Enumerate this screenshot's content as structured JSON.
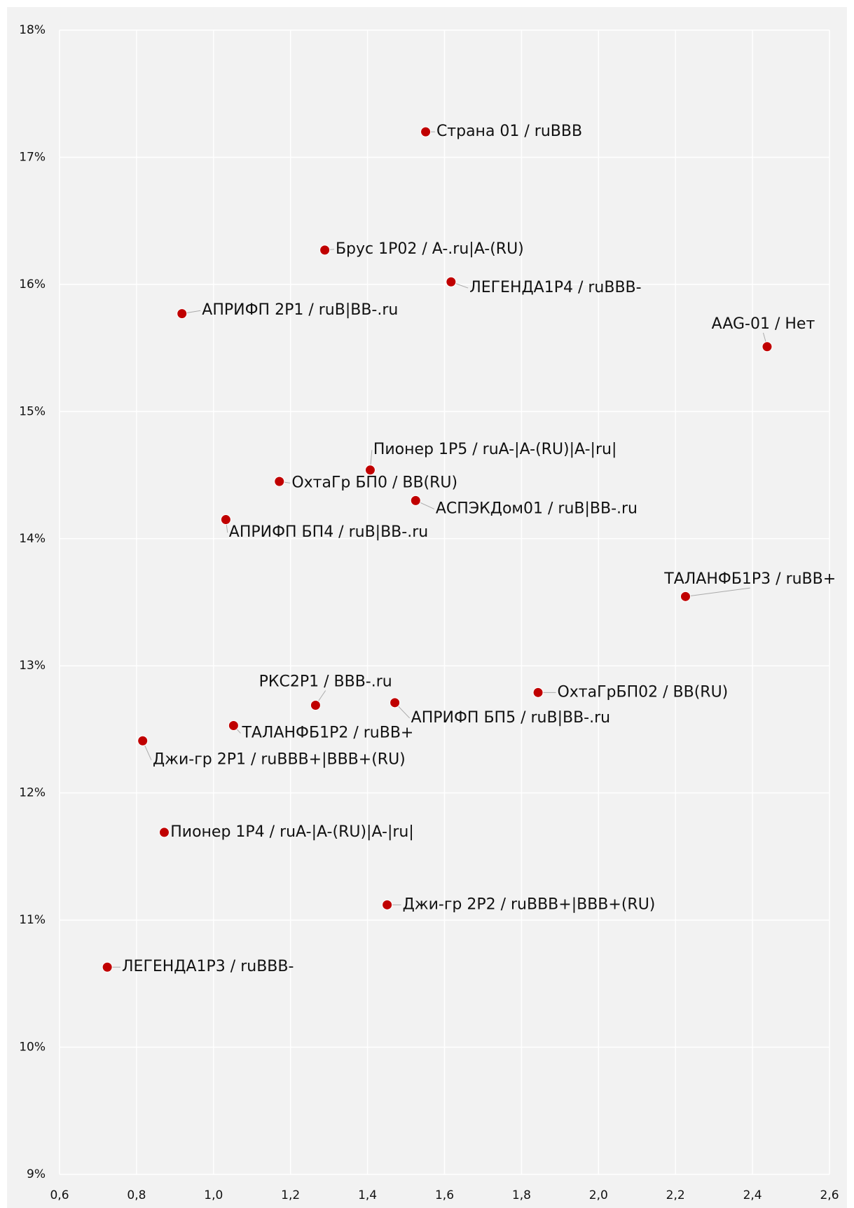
{
  "chart_data": {
    "type": "scatter",
    "series": [
      {
        "color": "#c00000",
        "labels": [
          "Страна 01 / ruBBB",
          "Брус 1Р02 / A-.ru|A-(RU)",
          "ЛЕГЕНДА1Р4 / ruBBB-",
          "АПРИФП 2Р1 / ruB|BB-.ru",
          "AAG-01 / Нет",
          "Пионер 1Р5 / ruA-|A-(RU)|A-|ru|",
          "ОхтаГр БП0 / BB(RU)",
          "АСПЭКДом01 / ruB|BB-.ru",
          "АПРИФП БП4 / ruB|BB-.ru",
          "ТАЛАНФБ1Р3 / ruBB+",
          "ОхтаГрБП02 / BB(RU)",
          "РКС2Р1 / BBB-.ru",
          "АПРИФП БП5 / ruB|BB-.ru",
          "ТАЛАНФБ1Р2 / ruBB+",
          "Джи-гр 2Р1 / ruBBB+|BBB+(RU)",
          "Пионер 1Р4 / ruA-|A-(RU)|A-|ru|",
          "Джи-гр 2Р2 / ruBBB+|BBB+(RU)",
          "ЛЕГЕНДА1Р3 / ruBBB-"
        ],
        "x": [
          1.551,
          1.289,
          1.617,
          0.918,
          2.438,
          1.407,
          1.171,
          1.525,
          1.032,
          2.226,
          1.843,
          1.265,
          1.471,
          1.052,
          0.816,
          0.872,
          1.451,
          0.724
        ],
        "values": [
          17.2,
          16.27,
          16.02,
          15.77,
          15.51,
          14.54,
          14.45,
          14.3,
          14.15,
          13.545,
          12.79,
          12.69,
          12.71,
          12.53,
          12.41,
          11.69,
          11.12,
          10.63
        ]
      }
    ],
    "xlim": [
      0.6,
      2.6
    ],
    "xticks": [
      {
        "value": 0.6,
        "label": "0,6"
      },
      {
        "value": 0.8,
        "label": "0,8"
      },
      {
        "value": 1.0,
        "label": "1,0"
      },
      {
        "value": 1.2,
        "label": "1,2"
      },
      {
        "value": 1.4,
        "label": "1,4"
      },
      {
        "value": 1.6,
        "label": "1,6"
      },
      {
        "value": 1.8,
        "label": "1,8"
      },
      {
        "value": 2.0,
        "label": "2,0"
      },
      {
        "value": 2.2,
        "label": "2,2"
      },
      {
        "value": 2.4,
        "label": "2,4"
      },
      {
        "value": 2.6,
        "label": "2,6"
      }
    ],
    "ylim": [
      9,
      18
    ],
    "yticks": [
      {
        "value": 9,
        "label": "9%"
      },
      {
        "value": 10,
        "label": "10%"
      },
      {
        "value": 11,
        "label": "11%"
      },
      {
        "value": 12,
        "label": "12%"
      },
      {
        "value": 13,
        "label": "13%"
      },
      {
        "value": 14,
        "label": "14%"
      },
      {
        "value": 15,
        "label": "15%"
      },
      {
        "value": 16,
        "label": "16%"
      },
      {
        "value": 17,
        "label": "17%"
      },
      {
        "value": 18,
        "label": "18%"
      }
    ],
    "grid": true
  }
}
